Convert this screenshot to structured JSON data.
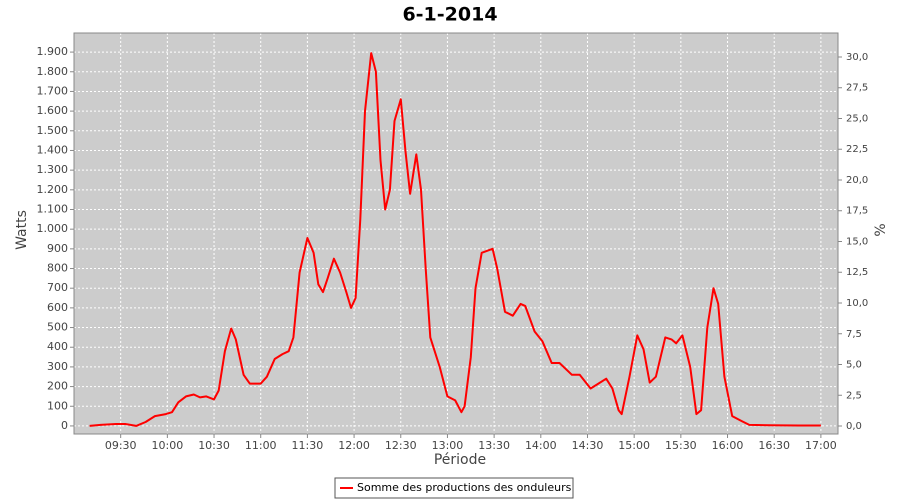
{
  "chart_data": {
    "type": "line",
    "title": "6-1-2014",
    "xlabel": "Période",
    "ylabel": "Watts",
    "y2label": "%",
    "x": [
      "09:10",
      "09:17",
      "09:27",
      "09:33",
      "09:40",
      "09:46",
      "09:52",
      "09:59",
      "10:03",
      "10:07",
      "10:12",
      "10:17",
      "10:21",
      "10:25",
      "10:30",
      "10:33",
      "10:37",
      "10:41",
      "10:44",
      "10:49",
      "10:53",
      "11:00",
      "11:04",
      "11:09",
      "11:14",
      "11:18",
      "11:21",
      "11:25",
      "11:30",
      "11:34",
      "11:37",
      "11:40",
      "11:43",
      "11:47",
      "11:51",
      "11:55",
      "11:58",
      "12:01",
      "12:04",
      "12:07",
      "12:11",
      "12:14",
      "12:17",
      "12:20",
      "12:23",
      "12:26",
      "12:30",
      "12:33",
      "12:36",
      "12:40",
      "12:43",
      "12:46",
      "12:49",
      "12:55",
      "13:00",
      "13:05",
      "13:09",
      "13:11",
      "13:15",
      "13:18",
      "13:22",
      "13:29",
      "13:32",
      "13:37",
      "13:42",
      "13:47",
      "13:50",
      "13:56",
      "14:01",
      "14:07",
      "14:12",
      "14:20",
      "14:25",
      "14:32",
      "14:37",
      "14:42",
      "14:46",
      "14:50",
      "14:52",
      "14:57",
      "15:02",
      "15:06",
      "15:10",
      "15:14",
      "15:20",
      "15:24",
      "15:27",
      "15:31",
      "15:36",
      "15:40",
      "15:43",
      "15:47",
      "15:51",
      "15:54",
      "15:58",
      "16:03",
      "16:09",
      "16:14",
      "16:27",
      "16:46",
      "17:00"
    ],
    "series": [
      {
        "name": "Somme des productions des onduleurs",
        "color": "#ff0000",
        "values": [
          0,
          5,
          10,
          10,
          0,
          20,
          50,
          60,
          70,
          120,
          150,
          160,
          145,
          150,
          135,
          180,
          380,
          495,
          440,
          260,
          215,
          215,
          250,
          340,
          365,
          380,
          450,
          780,
          955,
          880,
          720,
          680,
          750,
          850,
          780,
          680,
          600,
          650,
          1050,
          1600,
          1895,
          1800,
          1350,
          1100,
          1200,
          1550,
          1660,
          1400,
          1180,
          1380,
          1200,
          800,
          450,
          300,
          150,
          130,
          70,
          100,
          350,
          700,
          880,
          900,
          800,
          580,
          560,
          620,
          610,
          480,
          430,
          320,
          320,
          260,
          260,
          190,
          215,
          240,
          190,
          80,
          60,
          250,
          460,
          390,
          220,
          250,
          450,
          440,
          420,
          460,
          300,
          60,
          80,
          500,
          700,
          620,
          250,
          50,
          25,
          5,
          3,
          2,
          2
        ]
      }
    ],
    "xlim": [
      "09:00",
      "17:11"
    ],
    "xticks": [
      "09:30",
      "10:00",
      "10:30",
      "11:00",
      "11:30",
      "12:00",
      "12:30",
      "13:00",
      "13:30",
      "14:00",
      "14:30",
      "15:00",
      "15:30",
      "16:00",
      "16:30",
      "17:00"
    ],
    "ylim": [
      -41,
      1997
    ],
    "yticks": [
      0,
      100,
      200,
      300,
      400,
      500,
      600,
      700,
      800,
      900,
      {
        "value": 1000,
        "label": "1.000"
      },
      {
        "value": 1100,
        "label": "1.100"
      },
      {
        "value": 1200,
        "label": "1.200"
      },
      {
        "value": 1300,
        "label": "1.300"
      },
      {
        "value": 1400,
        "label": "1.400"
      },
      {
        "value": 1500,
        "label": "1.500"
      },
      {
        "value": 1600,
        "label": "1.600"
      },
      {
        "value": 1700,
        "label": "1.700"
      },
      {
        "value": 1800,
        "label": "1.800"
      },
      {
        "value": 1900,
        "label": "1.900"
      }
    ],
    "y2lim": [
      -0.65,
      31.95
    ],
    "y2ticks": [
      {
        "value": 0,
        "label": "0,0"
      },
      {
        "value": 2.5,
        "label": "2,5"
      },
      {
        "value": 5,
        "label": "5,0"
      },
      {
        "value": 7.5,
        "label": "7,5"
      },
      {
        "value": 10,
        "label": "10,0"
      },
      {
        "value": 12.5,
        "label": "12,5"
      },
      {
        "value": 15,
        "label": "15,0"
      },
      {
        "value": 17.5,
        "label": "17,5"
      },
      {
        "value": 20,
        "label": "20,0"
      },
      {
        "value": 22.5,
        "label": "22,5"
      },
      {
        "value": 25,
        "label": "25,0"
      },
      {
        "value": 27.5,
        "label": "27,5"
      },
      {
        "value": 30,
        "label": "30,0"
      }
    ],
    "grid": true,
    "legend": "bottom",
    "plot_background": "#cccccc"
  }
}
